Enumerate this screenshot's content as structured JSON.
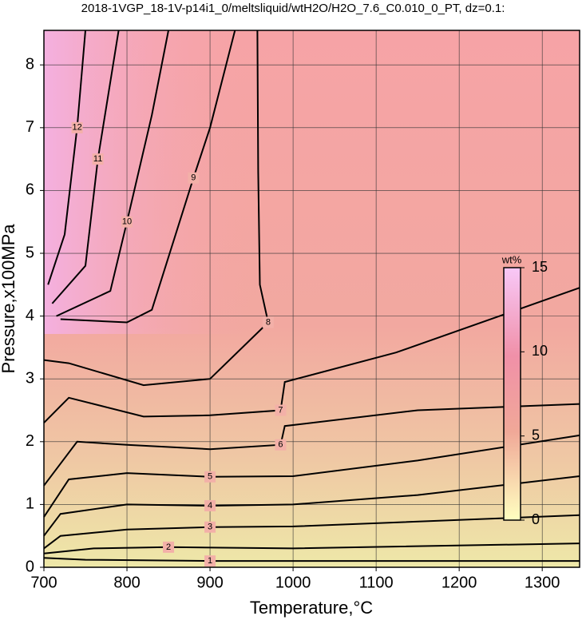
{
  "chart_data": {
    "type": "contour",
    "title": "2018-1VGP_18-1V-p14i1_0/meltsliquid/wtH2O/H2O_7.6_C0.010_0_PT, dz=0.1:",
    "x_label": "Temperature,°C",
    "y_label": "Pressure,x100MPa",
    "xlim": [
      700,
      1345
    ],
    "xticks": [
      700,
      800,
      900,
      1000,
      1100,
      1200,
      1300
    ],
    "ylim": [
      0,
      8.55
    ],
    "yticks": [
      0,
      1,
      2,
      3,
      4,
      5,
      6,
      7,
      8
    ],
    "grid": true,
    "line_color": "#000000",
    "colorbar": {
      "label": "wt%",
      "lim": [
        0,
        15
      ],
      "ticks": [
        0,
        5,
        10,
        15
      ]
    },
    "contours": [
      {
        "level": 1,
        "x": [
          700,
          750,
          900,
          1345
        ],
        "y": [
          0.15,
          0.12,
          0.1,
          0.1
        ]
      },
      {
        "level": 2,
        "x": [
          700,
          760,
          850,
          1000,
          1345
        ],
        "y": [
          0.22,
          0.3,
          0.32,
          0.3,
          0.38
        ]
      },
      {
        "level": 3,
        "x": [
          700,
          720,
          800,
          900,
          1000,
          1345
        ],
        "y": [
          0.3,
          0.5,
          0.6,
          0.64,
          0.65,
          0.83
        ]
      },
      {
        "level": 4,
        "x": [
          700,
          720,
          800,
          900,
          1000,
          1150,
          1345
        ],
        "y": [
          0.5,
          0.85,
          1.0,
          0.98,
          1.0,
          1.15,
          1.45
        ]
      },
      {
        "level": 5,
        "x": [
          700,
          730,
          800,
          900,
          1000,
          1150,
          1345
        ],
        "y": [
          0.8,
          1.4,
          1.5,
          1.44,
          1.45,
          1.7,
          2.1
        ]
      },
      {
        "level": 6,
        "x": [
          700,
          740,
          800,
          900,
          985,
          990,
          1150,
          1345
        ],
        "y": [
          1.3,
          2.0,
          1.95,
          1.88,
          1.95,
          2.25,
          2.5,
          2.6
        ]
      },
      {
        "level": 7,
        "x": [
          700,
          730,
          820,
          900,
          985,
          990,
          1124,
          1345
        ],
        "y": [
          2.3,
          2.7,
          2.4,
          2.42,
          2.5,
          2.95,
          3.42,
          4.45
        ]
      },
      {
        "level": 8,
        "x": [
          700,
          730,
          820,
          900,
          970,
          960,
          958,
          957
        ],
        "y": [
          3.3,
          3.25,
          2.9,
          3.0,
          3.9,
          4.5,
          6.3,
          8.55
        ]
      },
      {
        "level": 9,
        "x": [
          720,
          800,
          830,
          880,
          900,
          930
        ],
        "y": [
          3.95,
          3.9,
          4.1,
          6.2,
          7.0,
          8.55
        ]
      },
      {
        "level": 10,
        "x": [
          715,
          780,
          800,
          830,
          850
        ],
        "y": [
          4.0,
          4.4,
          5.5,
          7.2,
          8.55
        ]
      },
      {
        "level": 11,
        "x": [
          710,
          750,
          765,
          790
        ],
        "y": [
          4.2,
          4.8,
          6.5,
          8.55
        ]
      },
      {
        "level": 12,
        "x": [
          705,
          725,
          740,
          750
        ],
        "y": [
          4.5,
          5.3,
          7.0,
          8.55
        ]
      }
    ]
  }
}
